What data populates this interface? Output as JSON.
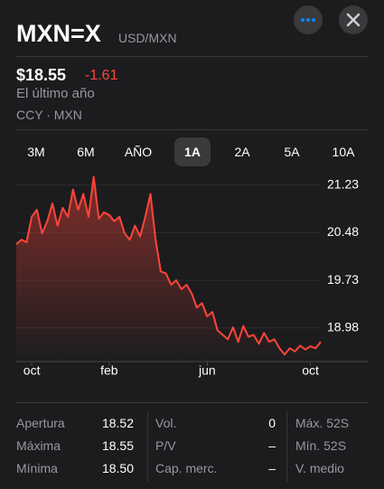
{
  "header": {
    "symbol": "MXN=X",
    "name": "USD/MXN",
    "price": "$18.55",
    "change": "-1.61",
    "period": "El último año",
    "exchange": "CCY · MXN"
  },
  "tabs": [
    "3M",
    "6M",
    "AÑO",
    "1A",
    "2A",
    "5A",
    "10A"
  ],
  "selected_tab": 3,
  "chart_data": {
    "type": "line",
    "color": "#ff453a",
    "categories": [
      null,
      null,
      null,
      "oct",
      null,
      null,
      null,
      null,
      null,
      null,
      null,
      null,
      null,
      null,
      null,
      null,
      null,
      null,
      "feb",
      null,
      null,
      null,
      null,
      null,
      null,
      null,
      null,
      null,
      null,
      null,
      null,
      null,
      null,
      null,
      null,
      null,
      null,
      "jun",
      null,
      null,
      null,
      null,
      null,
      null,
      null,
      null,
      null,
      null,
      null,
      null,
      null,
      null,
      null,
      null,
      null,
      null,
      null,
      "oct",
      null,
      null
    ],
    "values": [
      20.3,
      20.37,
      20.33,
      20.73,
      20.84,
      20.47,
      20.66,
      20.94,
      20.59,
      20.87,
      20.73,
      21.16,
      20.84,
      21.09,
      20.73,
      21.36,
      20.7,
      20.8,
      20.76,
      20.66,
      20.73,
      20.47,
      20.37,
      20.59,
      20.42,
      20.73,
      21.09,
      20.37,
      19.87,
      19.84,
      19.66,
      19.73,
      19.59,
      19.66,
      19.52,
      19.3,
      19.37,
      19.16,
      19.23,
      18.94,
      18.87,
      18.8,
      18.99,
      18.76,
      19.01,
      18.84,
      18.87,
      18.73,
      18.9,
      18.76,
      18.8,
      18.66,
      18.56,
      18.66,
      18.61,
      18.7,
      18.64,
      18.69,
      18.66,
      18.76
    ],
    "ylim": [
      18.45,
      21.44
    ],
    "yticks": [
      18.98,
      19.73,
      20.48,
      21.23
    ]
  },
  "stats": [
    [
      {
        "label": "Apertura",
        "value": "18.52"
      },
      {
        "label": "Máxima",
        "value": "18.55"
      },
      {
        "label": "Mínima",
        "value": "18.50"
      }
    ],
    [
      {
        "label": "Vol.",
        "value": "0"
      },
      {
        "label": "P/V",
        "value": "–"
      },
      {
        "label": "Cap. merc.",
        "value": "–"
      }
    ],
    [
      {
        "label": "Máx. 52S"
      },
      {
        "label": "Mín. 52S"
      },
      {
        "label": "V. medio"
      }
    ]
  ]
}
